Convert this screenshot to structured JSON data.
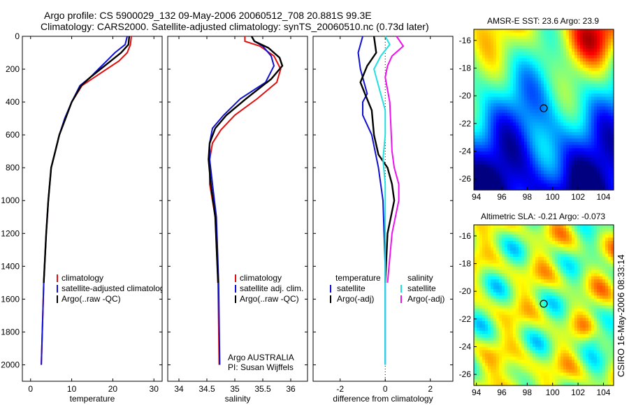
{
  "header": {
    "line1": "Argo profile: CS 5900029_132 09-May-2006 20060512_708 20.881S 99.3E",
    "line2": "Climatology: CARS2000. Satellite-adjusted climatology: synTS_20060510.nc (0.73d later)"
  },
  "side_label": "CSIRO 16-May-2006 08:33:14",
  "colors": {
    "climatology": "#e01010",
    "satellite": "#1010d0",
    "argo": "#000000",
    "sal_satellite": "#20e0e0",
    "sal_argo": "#ee10ee",
    "marker": "#000000"
  },
  "chart_data": [
    {
      "type": "line",
      "xlabel": "temperature",
      "xlim": [
        -2,
        32
      ],
      "ylim": [
        2100,
        0
      ],
      "xticks": [
        "0",
        "10",
        "20",
        "30"
      ],
      "xtick_values": [
        0,
        10,
        20,
        30
      ],
      "yticks": [
        "0",
        "200",
        "400",
        "600",
        "800",
        "1000",
        "1200",
        "1400",
        "1600",
        "1800",
        "2000"
      ],
      "ytick_values": [
        0,
        200,
        400,
        600,
        800,
        1000,
        1200,
        1400,
        1600,
        1800,
        2000
      ],
      "legend": [
        "climatology",
        "satellite-adjusted climatology",
        "Argo(..raw -QC)"
      ],
      "legend_position": "bottom-left",
      "series": [
        {
          "name": "climatology",
          "color": "#e01010",
          "x": [
            24.5,
            24.3,
            23.5,
            21.5,
            18.5,
            15.5,
            12.5,
            10.0,
            8.5,
            7.0,
            6.0,
            5.0,
            4.3,
            3.8,
            3.2,
            2.6
          ],
          "y": [
            0,
            50,
            100,
            150,
            200,
            250,
            300,
            400,
            500,
            600,
            700,
            800,
            1000,
            1200,
            1500,
            2000
          ]
        },
        {
          "name": "satellite-adjusted climatology",
          "color": "#1010d0",
          "x": [
            23.5,
            23.0,
            20.5,
            18.5,
            16.5,
            14.5,
            12.0,
            10.0,
            8.3,
            7.0,
            6.0,
            5.0,
            4.3,
            3.8,
            3.2,
            2.6
          ],
          "y": [
            0,
            50,
            100,
            150,
            200,
            250,
            300,
            400,
            500,
            600,
            700,
            800,
            1000,
            1200,
            1500,
            2000
          ]
        },
        {
          "name": "Argo(..raw -QC)",
          "color": "#000000",
          "x": [
            24.0,
            23.8,
            22.0,
            19.5,
            17.0,
            14.5,
            12.3,
            10.0,
            8.5,
            7.0,
            6.0,
            5.0,
            4.3,
            3.8,
            3.2
          ],
          "y": [
            0,
            50,
            100,
            150,
            200,
            250,
            300,
            400,
            500,
            600,
            700,
            800,
            1000,
            1200,
            1500
          ]
        }
      ]
    },
    {
      "type": "line",
      "xlabel": "salinity",
      "xlim": [
        33.8,
        36.3
      ],
      "ylim": [
        2100,
        0
      ],
      "xticks": [
        "34",
        "34.5",
        "35",
        "35.5",
        "36"
      ],
      "xtick_values": [
        34,
        34.5,
        35,
        35.5,
        36
      ],
      "legend": [
        "climatology",
        "satellite adj. clim.",
        "Argo(..raw -QC)"
      ],
      "legend_position": "bottom-right",
      "annotation": [
        "Argo AUSTRALIA",
        "PI: Susan Wijffels"
      ],
      "series": [
        {
          "name": "climatology",
          "color": "#e01010",
          "x": [
            35.18,
            35.18,
            35.45,
            35.7,
            35.82,
            35.75,
            35.4,
            35.0,
            34.75,
            34.6,
            34.55,
            34.55,
            34.65,
            34.7,
            34.72
          ],
          "y": [
            0,
            30,
            60,
            120,
            200,
            280,
            380,
            480,
            570,
            650,
            750,
            900,
            1100,
            1500,
            2000
          ]
        },
        {
          "name": "satellite adj. clim.",
          "color": "#1010d0",
          "x": [
            35.3,
            35.35,
            35.5,
            35.65,
            35.7,
            35.55,
            35.1,
            34.8,
            34.6,
            34.55,
            34.55,
            34.6,
            34.67,
            34.71,
            34.73
          ],
          "y": [
            0,
            30,
            60,
            120,
            180,
            280,
            380,
            480,
            560,
            650,
            750,
            900,
            1100,
            1500,
            2000
          ]
        },
        {
          "name": "Argo(..raw -QC)",
          "color": "#000000",
          "x": [
            35.3,
            35.35,
            35.6,
            35.8,
            35.85,
            35.65,
            35.2,
            34.85,
            34.65,
            34.55,
            34.53,
            34.57,
            34.65,
            34.7
          ],
          "y": [
            0,
            30,
            70,
            130,
            180,
            260,
            380,
            480,
            560,
            650,
            750,
            900,
            1100,
            1500
          ]
        }
      ]
    },
    {
      "type": "line",
      "xlabel": "difference from climatology",
      "xlim": [
        -3.2,
        3
      ],
      "ylim": [
        2100,
        0
      ],
      "xticks": [
        "-2",
        "0",
        "2"
      ],
      "xtick_values": [
        -2,
        0,
        2
      ],
      "legend_groups": [
        {
          "title": "temperature",
          "entries": [
            "satellite",
            "Argo(-adj)"
          ]
        },
        {
          "title": "salinity",
          "entries": [
            "satellite",
            "Argo(-adj)"
          ]
        }
      ],
      "series": [
        {
          "name": "satellite",
          "group": "temperature",
          "color": "#1010d0",
          "x": [
            -1.0,
            -1.2,
            -1.1,
            -0.9,
            -0.8,
            -1.0,
            -1.0,
            -0.6,
            -0.3,
            -0.1,
            0.0,
            0.0,
            0.0
          ],
          "y": [
            0,
            100,
            200,
            300,
            350,
            400,
            480,
            600,
            800,
            1000,
            1400,
            1800,
            2000
          ]
        },
        {
          "name": "Argo(-adj)",
          "group": "temperature",
          "color": "#000000",
          "x": [
            -0.5,
            -0.4,
            -0.8,
            -1.1,
            -0.9,
            -0.6,
            -0.5,
            -0.3,
            0.1,
            0.3,
            0.4,
            0.1,
            0.0
          ],
          "y": [
            0,
            100,
            180,
            280,
            350,
            450,
            600,
            720,
            800,
            900,
            1000,
            1200,
            1500
          ]
        },
        {
          "name": "satellite",
          "group": "salinity",
          "color": "#20e0e0",
          "x": [
            0.0,
            0.2,
            -0.2,
            -0.5,
            -0.3,
            0.0,
            0.0,
            -0.1,
            0.0,
            0.0,
            0.0
          ],
          "y": [
            0,
            50,
            120,
            200,
            300,
            450,
            600,
            750,
            900,
            1200,
            2000
          ]
        },
        {
          "name": "Argo(-adj)",
          "group": "salinity",
          "color": "#ee10ee",
          "x": [
            0.5,
            0.8,
            0.3,
            0.1,
            0.0,
            0.2,
            0.3,
            0.4,
            0.6,
            0.6,
            0.3,
            0.1
          ],
          "y": [
            0,
            60,
            120,
            180,
            250,
            400,
            700,
            800,
            900,
            1000,
            1200,
            1500
          ]
        }
      ]
    },
    {
      "type": "heatmap",
      "title": "AMSR-E SST: 23.6 Argo: 23.9",
      "xlim": [
        93.8,
        104.8
      ],
      "ylim": [
        -26.8,
        -15.2
      ],
      "xticks": [
        "94",
        "96",
        "98",
        "100",
        "102",
        "104"
      ],
      "xtick_values": [
        94,
        96,
        98,
        100,
        102,
        104
      ],
      "yticks": [
        "-16",
        "-18",
        "-20",
        "-22",
        "-24",
        "-26"
      ],
      "ytick_values": [
        -16,
        -18,
        -20,
        -22,
        -24,
        -26
      ],
      "marker": {
        "lon": 99.3,
        "lat": -20.9
      }
    },
    {
      "type": "heatmap",
      "title": "Altimetric SLA: -0.21 Argo: -0.073",
      "xlim": [
        93.8,
        104.8
      ],
      "ylim": [
        -26.8,
        -15.2
      ],
      "xticks": [
        "94",
        "96",
        "98",
        "100",
        "102",
        "104"
      ],
      "xtick_values": [
        94,
        96,
        98,
        100,
        102,
        104
      ],
      "yticks": [
        "-16",
        "-18",
        "-20",
        "-22",
        "-24",
        "-26"
      ],
      "ytick_values": [
        -16,
        -18,
        -20,
        -22,
        -24,
        -26
      ],
      "marker": {
        "lon": 99.3,
        "lat": -20.9
      }
    }
  ]
}
